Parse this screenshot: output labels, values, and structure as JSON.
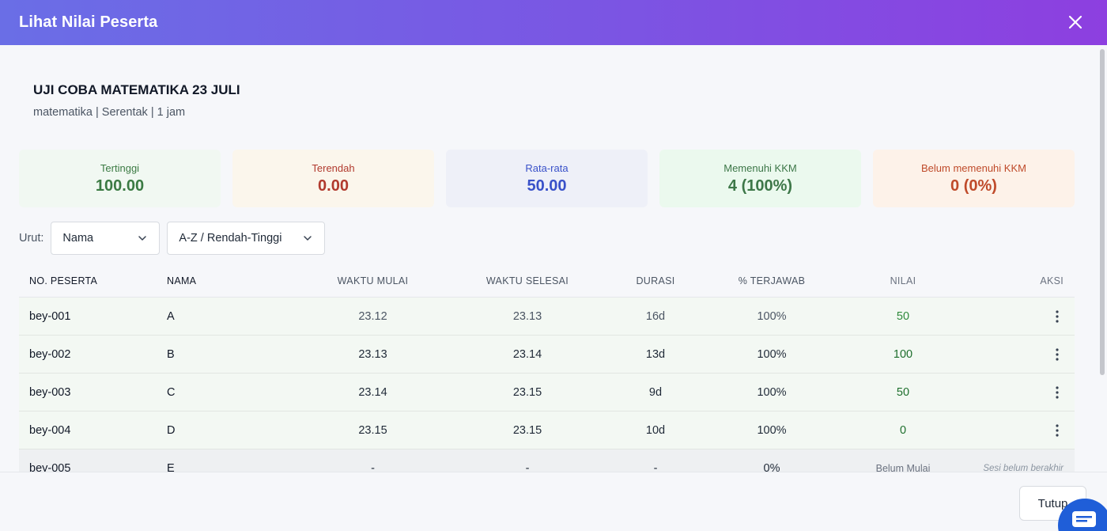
{
  "modal": {
    "title": "Lihat Nilai Peserta",
    "close_icon": "close-icon"
  },
  "exam": {
    "title": "UJI COBA MATEMATIKA 23 JULI",
    "meta": "matematika | Serentak | 1 jam"
  },
  "stats": [
    {
      "label": "Tertinggi",
      "value": "100.00",
      "color": "#3b7a43"
    },
    {
      "label": "Terendah",
      "value": "0.00",
      "color": "#b13a2e"
    },
    {
      "label": "Rata-rata",
      "value": "50.00",
      "color": "#3951c9"
    },
    {
      "label": "Memenuhi KKM",
      "value": "4 (100%)",
      "color": "#3d7748"
    },
    {
      "label": "Belum memenuhi KKM",
      "value": "0 (0%)",
      "color": "#bf4a2a"
    }
  ],
  "sort": {
    "label": "Urut:",
    "field": "Nama",
    "order": "A-Z / Rendah-Tinggi"
  },
  "table": {
    "headers": [
      "NO. PESERTA",
      "NAMA",
      "WAKTU MULAI",
      "WAKTU SELESAI",
      "DURASI",
      "% TERJAWAB",
      "NILAI",
      "AKSI"
    ],
    "rows": [
      {
        "no": "bey-001",
        "nama": "A",
        "mulai": "23.12",
        "selesai": "23.13",
        "durasi": "16d",
        "terjawab": "100%",
        "nilai": "50"
      },
      {
        "no": "bey-002",
        "nama": "B",
        "mulai": "23.13",
        "selesai": "23.14",
        "durasi": "13d",
        "terjawab": "100%",
        "nilai": "100"
      },
      {
        "no": "bey-003",
        "nama": "C",
        "mulai": "23.14",
        "selesai": "23.15",
        "durasi": "9d",
        "terjawab": "100%",
        "nilai": "50"
      },
      {
        "no": "bey-004",
        "nama": "D",
        "mulai": "23.15",
        "selesai": "23.15",
        "durasi": "10d",
        "terjawab": "100%",
        "nilai": "0"
      },
      {
        "no": "bey-005",
        "nama": "E",
        "mulai": "-",
        "selesai": "-",
        "durasi": "-",
        "terjawab": "0%",
        "nilai": "Belum Mulai",
        "aksi": "Sesi belum berakhir"
      }
    ]
  },
  "footer": {
    "close_label": "Tutup"
  },
  "colors": {
    "header_gradient_start": "#6a6ee6",
    "header_gradient_end": "#8d3fe0",
    "score_green": "#2f8a3c",
    "chat_fab": "#1f5ed8"
  }
}
